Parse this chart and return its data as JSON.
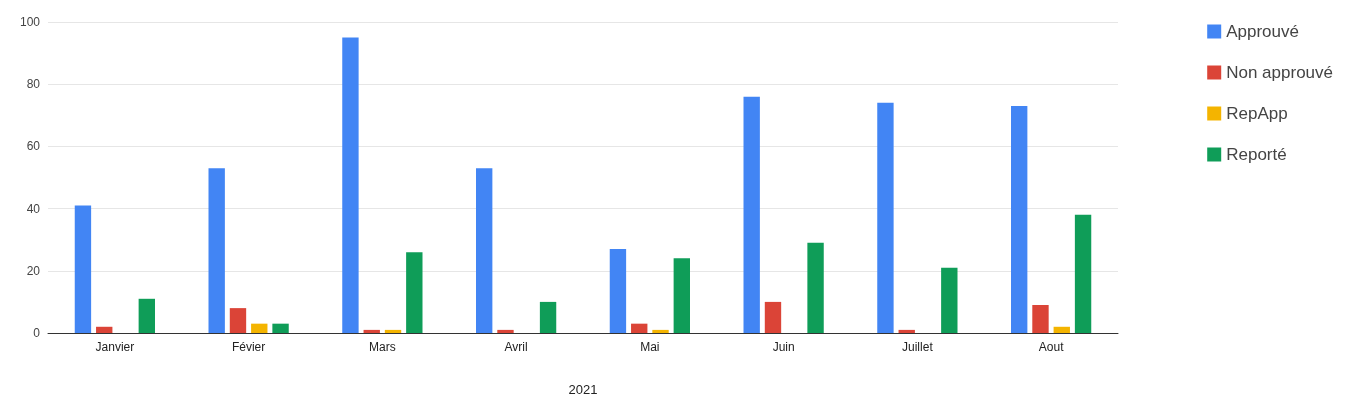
{
  "chart_data": {
    "type": "bar",
    "xlabel": "2021",
    "categories": [
      "Janvier",
      "Févier",
      "Mars",
      "Avril",
      "Mai",
      "Juin",
      "Juillet",
      "Aout"
    ],
    "series": [
      {
        "name": "Approuvé",
        "color": "#4285f4",
        "values": [
          41,
          53,
          95,
          53,
          27,
          76,
          74,
          73
        ]
      },
      {
        "name": "Non approuvé",
        "color": "#db4437",
        "values": [
          2,
          8,
          1,
          1,
          3,
          10,
          1,
          9
        ]
      },
      {
        "name": "RepApp",
        "color": "#f4b400",
        "values": [
          0,
          3,
          1,
          0,
          1,
          0,
          0,
          2
        ]
      },
      {
        "name": "Reporté",
        "color": "#0f9d58",
        "values": [
          11,
          3,
          26,
          10,
          24,
          29,
          21,
          38
        ]
      }
    ],
    "ylim": [
      0,
      100
    ],
    "yticks": [
      0,
      20,
      40,
      60,
      80,
      100
    ],
    "grid": "y",
    "legend": "right"
  }
}
